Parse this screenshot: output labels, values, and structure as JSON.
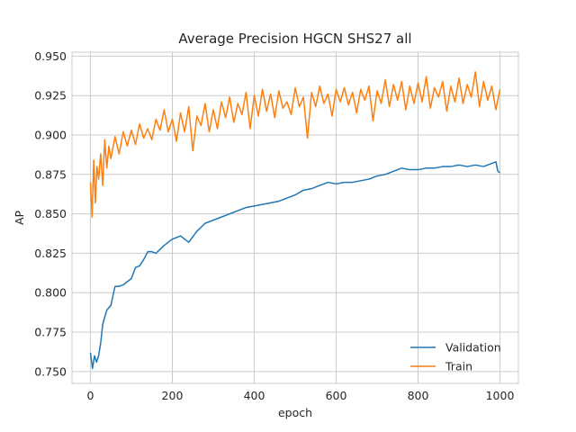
{
  "chart_data": {
    "type": "line",
    "title": "Average Precision HGCN SHS27 all",
    "xlabel": "epoch",
    "ylabel": "AP",
    "xlim": [
      -45,
      1045
    ],
    "ylim": [
      0.7425,
      0.9525
    ],
    "xticks": [
      0,
      200,
      400,
      600,
      800,
      1000
    ],
    "yticks": [
      0.75,
      0.775,
      0.8,
      0.825,
      0.85,
      0.875,
      0.9,
      0.925,
      0.95
    ],
    "ytick_labels": [
      "0.750",
      "0.775",
      "0.800",
      "0.825",
      "0.850",
      "0.875",
      "0.900",
      "0.925",
      "0.950"
    ],
    "grid": true,
    "legend_position": "lower-right",
    "series": [
      {
        "name": "Validation",
        "color": "#1f77b4",
        "x": [
          0,
          5,
          10,
          15,
          20,
          25,
          30,
          40,
          50,
          60,
          70,
          80,
          100,
          110,
          120,
          130,
          140,
          150,
          160,
          180,
          200,
          210,
          220,
          230,
          240,
          260,
          280,
          300,
          320,
          340,
          360,
          380,
          400,
          420,
          440,
          460,
          480,
          500,
          520,
          540,
          560,
          580,
          600,
          620,
          640,
          660,
          680,
          700,
          720,
          740,
          760,
          780,
          800,
          820,
          840,
          860,
          880,
          900,
          920,
          940,
          960,
          980,
          990,
          995,
          1000
        ],
        "y": [
          0.762,
          0.752,
          0.76,
          0.756,
          0.76,
          0.768,
          0.78,
          0.789,
          0.792,
          0.804,
          0.804,
          0.805,
          0.809,
          0.816,
          0.817,
          0.821,
          0.826,
          0.826,
          0.825,
          0.83,
          0.834,
          0.835,
          0.836,
          0.834,
          0.832,
          0.839,
          0.844,
          0.846,
          0.848,
          0.85,
          0.852,
          0.854,
          0.855,
          0.856,
          0.857,
          0.858,
          0.86,
          0.862,
          0.865,
          0.866,
          0.868,
          0.87,
          0.869,
          0.87,
          0.87,
          0.871,
          0.872,
          0.874,
          0.875,
          0.877,
          0.879,
          0.878,
          0.878,
          0.879,
          0.879,
          0.88,
          0.88,
          0.881,
          0.88,
          0.881,
          0.88,
          0.882,
          0.883,
          0.877,
          0.876
        ]
      },
      {
        "name": "Train",
        "color": "#ff7f0e",
        "x": [
          0,
          4,
          8,
          12,
          16,
          20,
          25,
          30,
          35,
          40,
          45,
          50,
          60,
          70,
          80,
          90,
          100,
          110,
          120,
          130,
          140,
          150,
          160,
          170,
          180,
          190,
          200,
          210,
          220,
          230,
          240,
          250,
          260,
          270,
          280,
          290,
          300,
          310,
          320,
          330,
          340,
          350,
          360,
          370,
          380,
          390,
          400,
          410,
          420,
          430,
          440,
          450,
          460,
          470,
          480,
          490,
          500,
          510,
          520,
          530,
          540,
          550,
          560,
          570,
          580,
          590,
          600,
          610,
          620,
          630,
          640,
          650,
          660,
          670,
          680,
          690,
          700,
          710,
          720,
          730,
          740,
          750,
          760,
          770,
          780,
          790,
          800,
          810,
          820,
          830,
          840,
          850,
          860,
          870,
          880,
          890,
          900,
          910,
          920,
          930,
          940,
          950,
          960,
          970,
          980,
          990,
          1000
        ],
        "y": [
          0.87,
          0.848,
          0.884,
          0.857,
          0.88,
          0.872,
          0.888,
          0.868,
          0.897,
          0.879,
          0.893,
          0.885,
          0.899,
          0.888,
          0.902,
          0.893,
          0.903,
          0.894,
          0.907,
          0.898,
          0.904,
          0.897,
          0.91,
          0.903,
          0.916,
          0.902,
          0.91,
          0.896,
          0.914,
          0.902,
          0.918,
          0.89,
          0.912,
          0.906,
          0.92,
          0.902,
          0.916,
          0.904,
          0.921,
          0.911,
          0.924,
          0.908,
          0.92,
          0.913,
          0.927,
          0.904,
          0.925,
          0.912,
          0.929,
          0.915,
          0.926,
          0.911,
          0.928,
          0.917,
          0.921,
          0.913,
          0.93,
          0.918,
          0.924,
          0.898,
          0.927,
          0.918,
          0.931,
          0.92,
          0.926,
          0.912,
          0.929,
          0.921,
          0.93,
          0.919,
          0.927,
          0.914,
          0.929,
          0.922,
          0.931,
          0.909,
          0.928,
          0.92,
          0.935,
          0.918,
          0.932,
          0.922,
          0.934,
          0.916,
          0.931,
          0.92,
          0.933,
          0.921,
          0.937,
          0.917,
          0.93,
          0.924,
          0.934,
          0.915,
          0.931,
          0.921,
          0.936,
          0.92,
          0.932,
          0.924,
          0.94,
          0.918,
          0.934,
          0.922,
          0.931,
          0.916,
          0.929
        ]
      }
    ]
  }
}
